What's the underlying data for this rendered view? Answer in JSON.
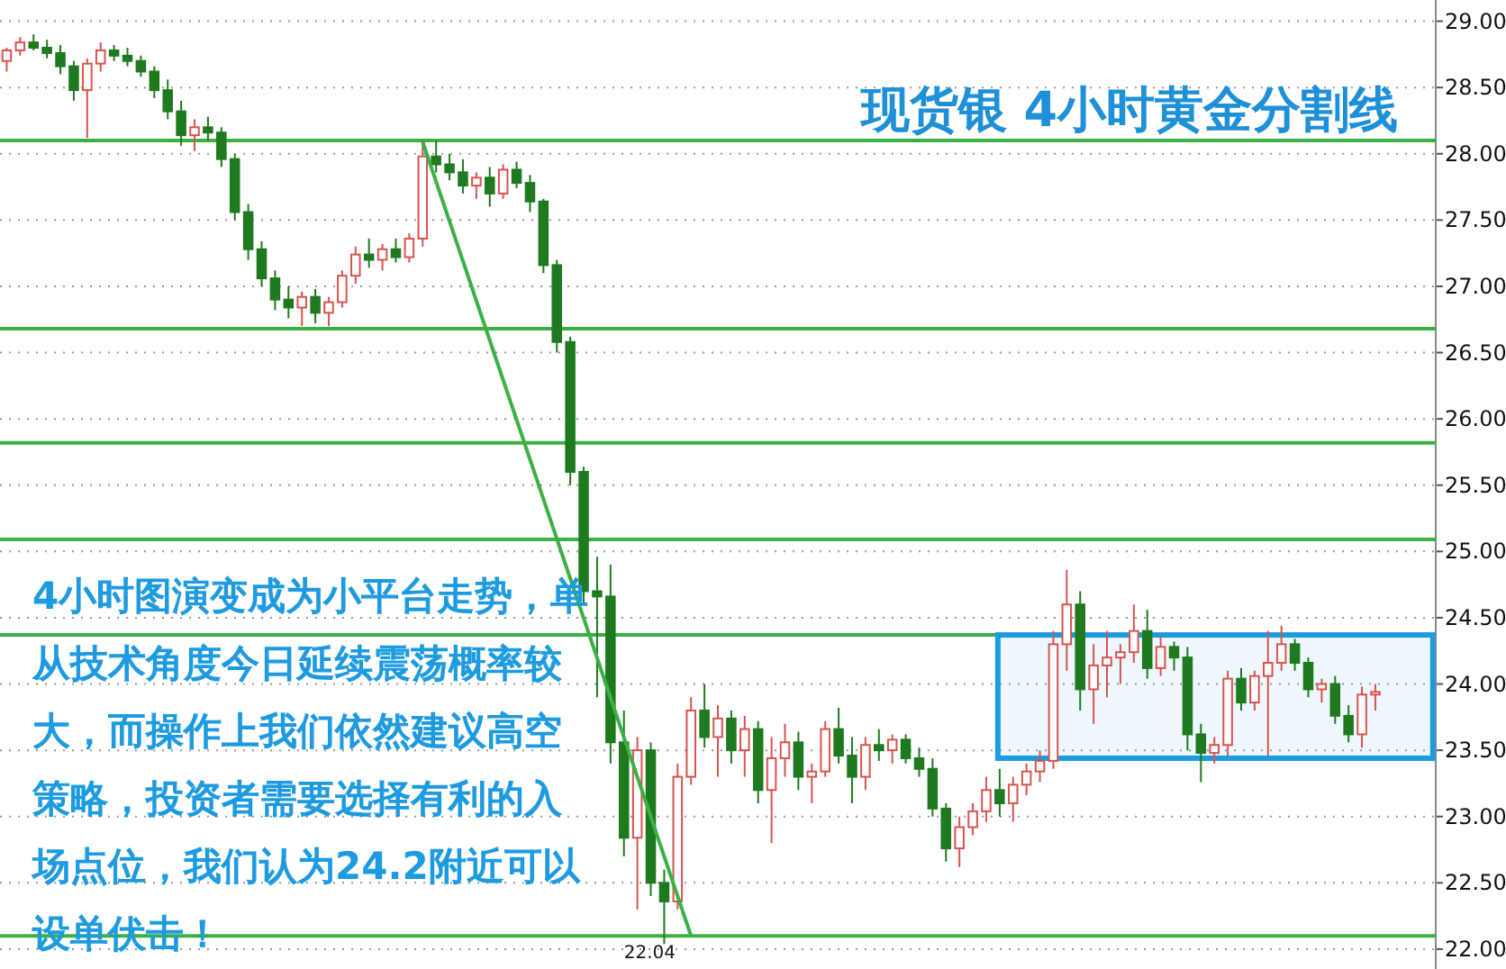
{
  "chart_data": {
    "type": "candlestick",
    "title": "现货银 4小时黄金分割线",
    "categories": [
      null,
      null,
      null,
      null,
      null,
      null,
      null,
      null,
      null,
      null,
      null,
      null,
      null,
      null,
      null,
      null,
      null,
      null,
      null,
      null,
      null,
      null,
      null,
      null,
      null,
      null,
      null,
      null,
      null,
      null,
      null,
      null,
      null,
      null,
      null,
      null,
      null,
      null,
      null,
      null,
      null,
      null,
      null,
      null,
      null,
      null,
      null,
      null,
      null,
      null,
      null,
      null,
      null,
      null,
      null,
      null,
      null,
      null,
      null,
      null,
      null,
      null,
      null,
      null,
      null,
      null,
      null,
      null,
      null,
      null,
      null,
      null,
      null,
      null,
      null,
      null,
      null,
      null,
      null,
      null,
      null,
      null,
      null,
      null,
      null,
      null,
      null,
      null,
      null,
      null,
      null,
      null,
      null,
      null,
      null,
      null,
      null,
      null,
      null,
      null,
      null,
      null,
      null
    ],
    "ohlc": [
      [
        28.7,
        28.8,
        28.62,
        28.78
      ],
      [
        28.78,
        28.88,
        28.74,
        28.84
      ],
      [
        28.84,
        28.9,
        28.78,
        28.8
      ],
      [
        28.8,
        28.86,
        28.72,
        28.76
      ],
      [
        28.76,
        28.82,
        28.6,
        28.66
      ],
      [
        28.66,
        28.7,
        28.4,
        28.48
      ],
      [
        28.48,
        28.72,
        28.12,
        28.68
      ],
      [
        28.68,
        28.84,
        28.62,
        28.78
      ],
      [
        28.78,
        28.82,
        28.7,
        28.74
      ],
      [
        28.74,
        28.8,
        28.66,
        28.7
      ],
      [
        28.7,
        28.74,
        28.58,
        28.62
      ],
      [
        28.62,
        28.66,
        28.42,
        28.48
      ],
      [
        28.48,
        28.56,
        28.26,
        28.32
      ],
      [
        28.32,
        28.4,
        28.06,
        28.14
      ],
      [
        28.14,
        28.26,
        28.02,
        28.2
      ],
      [
        28.2,
        28.28,
        28.1,
        28.16
      ],
      [
        28.16,
        28.2,
        27.9,
        27.96
      ],
      [
        27.96,
        28.0,
        27.5,
        27.56
      ],
      [
        27.56,
        27.62,
        27.2,
        27.28
      ],
      [
        27.28,
        27.34,
        27.0,
        27.06
      ],
      [
        27.06,
        27.12,
        26.82,
        26.9
      ],
      [
        26.9,
        27.0,
        26.76,
        26.84
      ],
      [
        26.84,
        26.96,
        26.7,
        26.92
      ],
      [
        26.92,
        26.98,
        26.72,
        26.8
      ],
      [
        26.8,
        26.92,
        26.7,
        26.88
      ],
      [
        26.88,
        27.12,
        26.84,
        27.08
      ],
      [
        27.08,
        27.3,
        27.02,
        27.24
      ],
      [
        27.24,
        27.36,
        27.14,
        27.2
      ],
      [
        27.2,
        27.32,
        27.12,
        27.28
      ],
      [
        27.28,
        27.36,
        27.18,
        27.22
      ],
      [
        27.22,
        27.4,
        27.18,
        27.36
      ],
      [
        27.36,
        28.1,
        27.3,
        27.98
      ],
      [
        27.98,
        28.1,
        27.86,
        27.92
      ],
      [
        27.92,
        28.0,
        27.8,
        27.86
      ],
      [
        27.86,
        27.96,
        27.7,
        27.76
      ],
      [
        27.76,
        27.86,
        27.66,
        27.82
      ],
      [
        27.82,
        27.9,
        27.6,
        27.7
      ],
      [
        27.7,
        27.92,
        27.66,
        27.88
      ],
      [
        27.88,
        27.94,
        27.74,
        27.78
      ],
      [
        27.78,
        27.84,
        27.56,
        27.64
      ],
      [
        27.64,
        27.66,
        27.1,
        27.16
      ],
      [
        27.16,
        27.2,
        26.5,
        26.58
      ],
      [
        26.58,
        26.62,
        25.5,
        25.6
      ],
      [
        25.6,
        25.64,
        24.6,
        24.7
      ],
      [
        24.7,
        24.96,
        23.9,
        24.66
      ],
      [
        24.66,
        24.9,
        23.4,
        23.56
      ],
      [
        23.56,
        23.8,
        22.7,
        22.84
      ],
      [
        22.84,
        23.6,
        22.3,
        23.5
      ],
      [
        23.5,
        23.56,
        22.4,
        22.5
      ],
      [
        22.5,
        22.6,
        22.04,
        22.36
      ],
      [
        22.36,
        23.4,
        22.3,
        23.3
      ],
      [
        23.3,
        23.9,
        23.24,
        23.8
      ],
      [
        23.8,
        24.0,
        23.52,
        23.6
      ],
      [
        23.6,
        23.84,
        23.3,
        23.74
      ],
      [
        23.74,
        23.8,
        23.4,
        23.5
      ],
      [
        23.5,
        23.76,
        23.3,
        23.66
      ],
      [
        23.66,
        23.72,
        23.1,
        23.2
      ],
      [
        23.2,
        23.6,
        22.8,
        23.44
      ],
      [
        23.44,
        23.7,
        23.3,
        23.56
      ],
      [
        23.56,
        23.64,
        23.2,
        23.3
      ],
      [
        23.3,
        23.4,
        23.1,
        23.34
      ],
      [
        23.34,
        23.72,
        23.3,
        23.66
      ],
      [
        23.66,
        23.82,
        23.4,
        23.46
      ],
      [
        23.46,
        23.6,
        23.1,
        23.3
      ],
      [
        23.3,
        23.6,
        23.2,
        23.54
      ],
      [
        23.54,
        23.66,
        23.42,
        23.5
      ],
      [
        23.5,
        23.62,
        23.4,
        23.58
      ],
      [
        23.58,
        23.62,
        23.4,
        23.44
      ],
      [
        23.44,
        23.52,
        23.3,
        23.36
      ],
      [
        23.36,
        23.44,
        23.0,
        23.06
      ],
      [
        23.06,
        23.1,
        22.66,
        22.76
      ],
      [
        22.76,
        23.0,
        22.62,
        22.92
      ],
      [
        22.92,
        23.1,
        22.86,
        23.04
      ],
      [
        23.04,
        23.3,
        22.96,
        23.2
      ],
      [
        23.2,
        23.36,
        23.0,
        23.1
      ],
      [
        23.1,
        23.3,
        22.96,
        23.24
      ],
      [
        23.24,
        23.4,
        23.16,
        23.34
      ],
      [
        23.34,
        23.5,
        23.26,
        23.42
      ],
      [
        23.42,
        24.4,
        23.36,
        24.3
      ],
      [
        24.3,
        24.86,
        24.1,
        24.6
      ],
      [
        24.6,
        24.7,
        23.8,
        23.96
      ],
      [
        23.96,
        24.3,
        23.7,
        24.14
      ],
      [
        24.14,
        24.4,
        23.9,
        24.2
      ],
      [
        24.2,
        24.3,
        24.0,
        24.24
      ],
      [
        24.24,
        24.6,
        24.16,
        24.4
      ],
      [
        24.4,
        24.56,
        24.04,
        24.12
      ],
      [
        24.12,
        24.36,
        24.06,
        24.28
      ],
      [
        24.28,
        24.32,
        24.1,
        24.2
      ],
      [
        24.2,
        24.28,
        23.5,
        23.62
      ],
      [
        23.62,
        23.7,
        23.26,
        23.48
      ],
      [
        23.48,
        23.6,
        23.4,
        23.54
      ],
      [
        23.54,
        24.1,
        23.46,
        24.04
      ],
      [
        24.04,
        24.12,
        23.8,
        23.86
      ],
      [
        23.86,
        24.1,
        23.8,
        24.06
      ],
      [
        24.06,
        24.4,
        23.46,
        24.16
      ],
      [
        24.16,
        24.44,
        24.1,
        24.3
      ],
      [
        24.3,
        24.34,
        24.1,
        24.16
      ],
      [
        24.16,
        24.2,
        23.9,
        23.96
      ],
      [
        23.96,
        24.04,
        23.86,
        24.0
      ],
      [
        24.0,
        24.06,
        23.7,
        23.76
      ],
      [
        23.76,
        23.84,
        23.56,
        23.62
      ],
      [
        23.62,
        23.98,
        23.52,
        23.92
      ],
      [
        23.92,
        24.0,
        23.8,
        23.94
      ]
    ],
    "series": [
      {
        "type": "line",
        "color": "#3cb043",
        "values": [
          null,
          null,
          null,
          null,
          null,
          null,
          null,
          null,
          null,
          null,
          null,
          null,
          null,
          null,
          null,
          null,
          null,
          null,
          null,
          null,
          null,
          null,
          null,
          null,
          null,
          null,
          null,
          null,
          null,
          null,
          null,
          28.09,
          null,
          null,
          null,
          null,
          null,
          null,
          null,
          null,
          null,
          null,
          null,
          null,
          null,
          null,
          null,
          null,
          null,
          null,
          null,
          22.1,
          null,
          null,
          null,
          null,
          null,
          null,
          null,
          null,
          null,
          null,
          null,
          null,
          null,
          null,
          null,
          null,
          null,
          null,
          null,
          null,
          null,
          null,
          null,
          null,
          null,
          null,
          null,
          null,
          null,
          null,
          null,
          null,
          null,
          null,
          null,
          null,
          null,
          null,
          null,
          null,
          null,
          null,
          null,
          null,
          null,
          null,
          null,
          null,
          null,
          null,
          null
        ]
      }
    ],
    "ylim": [
      21.85,
      29.16
    ],
    "yticks": [
      {
        "value": 22,
        "label": "22.00"
      },
      {
        "value": 22.5,
        "label": "22.50"
      },
      {
        "value": 23,
        "label": "23.00"
      },
      {
        "value": 23.5,
        "label": "23.50"
      },
      {
        "value": 24,
        "label": "24.00"
      },
      {
        "value": 24.5,
        "label": "24.50"
      },
      {
        "value": 25,
        "label": "25.00"
      },
      {
        "value": 25.5,
        "label": "25.50"
      },
      {
        "value": 26,
        "label": "26.00"
      },
      {
        "value": 26.5,
        "label": "26.50"
      },
      {
        "value": 27,
        "label": "27.00"
      },
      {
        "value": 27.5,
        "label": "27.50"
      },
      {
        "value": 28,
        "label": "28.00"
      },
      {
        "value": 28.5,
        "label": "28.50"
      },
      {
        "value": 29,
        "label": "29.00"
      }
    ],
    "grid": "y",
    "ref_lines": [
      {
        "axis": "y",
        "value": 28.1,
        "color": "#3cb043"
      },
      {
        "axis": "y",
        "value": 26.68,
        "color": "#3cb043"
      },
      {
        "axis": "y",
        "value": 25.82,
        "color": "#3cb043"
      },
      {
        "axis": "y",
        "value": 25.09,
        "color": "#3cb043"
      },
      {
        "axis": "y",
        "value": 24.37,
        "color": "#3cb043"
      },
      {
        "axis": "y",
        "value": 22.1,
        "color": "#3cb043"
      }
    ],
    "bands": [
      {
        "axis": "y",
        "from": 23.44,
        "to": 24.37,
        "color": "#1e9be0"
      }
    ],
    "annotations": [
      {
        "text": "22.04",
        "y": 22.04
      },
      "4小时图演变成为小平台走势，单从技术角度今日延续震荡概率较大，而操作上我们依然建议高空策略，投资者需要选择有利的入场点位，我们认为24.2附近可以设单伏击！"
    ]
  }
}
